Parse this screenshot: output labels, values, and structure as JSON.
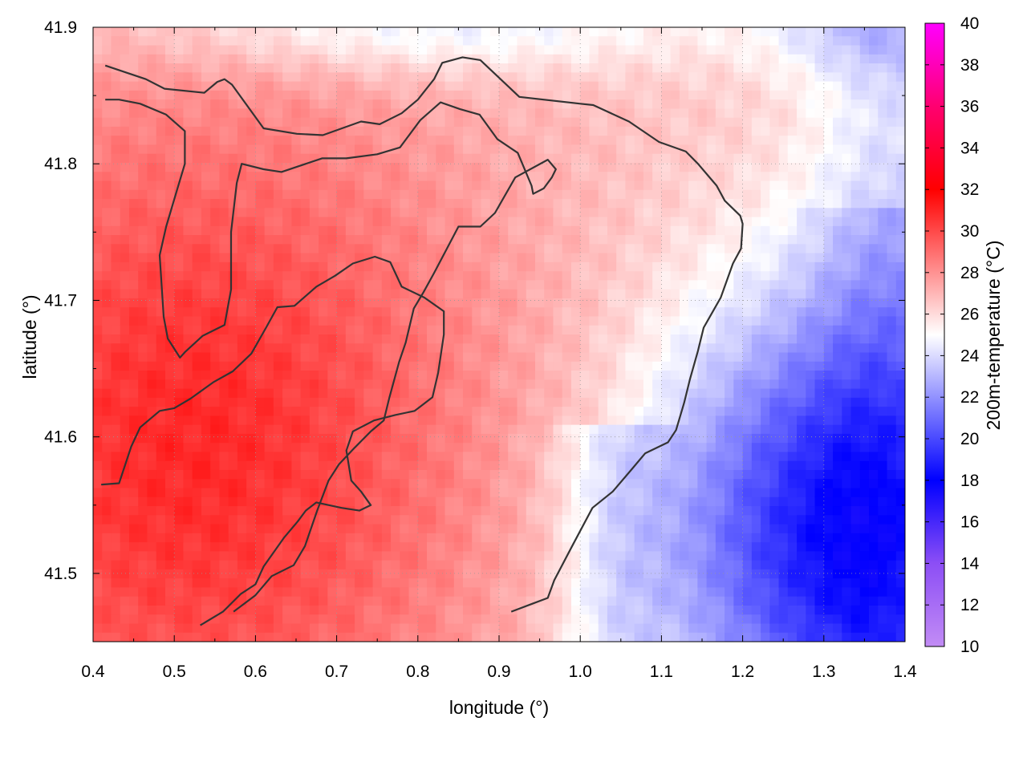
{
  "chart_data": {
    "type": "heatmap",
    "title": "",
    "xlabel": "longitude (°)",
    "ylabel": "latitude (°)",
    "colorbar_label": "200m-temperature (°C)",
    "xlim": [
      0.4,
      1.4
    ],
    "ylim": [
      41.45,
      41.9
    ],
    "x_ticks": [
      0.4,
      0.5,
      0.6,
      0.7,
      0.8,
      0.9,
      1.0,
      1.1,
      1.2,
      1.3,
      1.4
    ],
    "y_ticks": [
      41.5,
      41.6,
      41.7,
      41.8,
      41.9
    ],
    "x_tick_labels": [
      "0.4",
      "0.5",
      "0.6",
      "0.7",
      "0.8",
      "0.9",
      "1.0",
      "1.1",
      "1.2",
      "1.3",
      "1.4"
    ],
    "y_tick_labels": [
      "41.5",
      "41.6",
      "41.7",
      "41.8",
      "41.9"
    ],
    "colorbar_range": [
      10,
      40
    ],
    "colorbar_ticks": [
      10,
      12,
      14,
      16,
      18,
      20,
      22,
      24,
      26,
      28,
      30,
      32,
      34,
      36,
      38,
      40
    ],
    "colorbar_tick_labels": [
      "10",
      "12",
      "14",
      "16",
      "18",
      "20",
      "22",
      "24",
      "26",
      "28",
      "30",
      "32",
      "34",
      "36",
      "38",
      "40"
    ],
    "colorbar_stops": [
      {
        "value": 10,
        "color": "#c28cf5"
      },
      {
        "value": 14,
        "color": "#8c4ef5"
      },
      {
        "value": 18,
        "color": "#0000ff"
      },
      {
        "value": 25,
        "color": "#ffffff"
      },
      {
        "value": 32,
        "color": "#ff0000"
      },
      {
        "value": 36,
        "color": "#ff0070"
      },
      {
        "value": 40,
        "color": "#ff00ff"
      }
    ],
    "grid": true,
    "contour_color": "#333333",
    "contours": [
      {
        "level": "outer-left",
        "points": [
          [
            0.415,
            41.872
          ],
          [
            0.465,
            41.862
          ],
          [
            0.488,
            41.855
          ],
          [
            0.537,
            41.852
          ],
          [
            0.553,
            41.86
          ],
          [
            0.562,
            41.862
          ],
          [
            0.571,
            41.858
          ],
          [
            0.61,
            41.826
          ],
          [
            0.651,
            41.822
          ],
          [
            0.683,
            41.821
          ],
          [
            0.73,
            41.831
          ],
          [
            0.753,
            41.829
          ],
          [
            0.78,
            41.837
          ],
          [
            0.8,
            41.847
          ],
          [
            0.82,
            41.862
          ],
          [
            0.83,
            41.874
          ],
          [
            0.855,
            41.878
          ],
          [
            0.877,
            41.876
          ],
          [
            0.925,
            41.849
          ],
          [
            1.0,
            41.844
          ],
          [
            1.016,
            41.843
          ],
          [
            1.06,
            41.831
          ],
          [
            1.097,
            41.816
          ],
          [
            1.13,
            41.809
          ],
          [
            1.145,
            41.8
          ],
          [
            1.168,
            41.784
          ],
          [
            1.178,
            41.773
          ],
          [
            1.197,
            41.762
          ],
          [
            1.2,
            41.756
          ],
          [
            1.198,
            41.738
          ],
          [
            1.188,
            41.727
          ],
          [
            1.173,
            41.702
          ],
          [
            1.152,
            41.68
          ],
          [
            1.145,
            41.663
          ],
          [
            1.135,
            41.642
          ],
          [
            1.128,
            41.625
          ],
          [
            1.118,
            41.605
          ],
          [
            1.108,
            41.596
          ],
          [
            1.08,
            41.588
          ],
          [
            1.063,
            41.576
          ],
          [
            1.04,
            41.56
          ],
          [
            1.015,
            41.548
          ],
          [
            0.99,
            41.52
          ],
          [
            0.968,
            41.495
          ],
          [
            0.96,
            41.482
          ],
          [
            0.942,
            41.478
          ],
          [
            0.915,
            41.472
          ]
        ]
      },
      {
        "level": "inner-band",
        "points": [
          [
            0.415,
            41.847
          ],
          [
            0.432,
            41.847
          ],
          [
            0.458,
            41.844
          ],
          [
            0.49,
            41.836
          ],
          [
            0.513,
            41.824
          ],
          [
            0.513,
            41.806
          ],
          [
            0.513,
            41.8
          ],
          [
            0.503,
            41.78
          ],
          [
            0.49,
            41.754
          ],
          [
            0.482,
            41.733
          ],
          [
            0.485,
            41.706
          ],
          [
            0.487,
            41.688
          ],
          [
            0.492,
            41.672
          ],
          [
            0.507,
            41.658
          ],
          [
            0.513,
            41.662
          ],
          [
            0.535,
            41.674
          ],
          [
            0.562,
            41.682
          ],
          [
            0.57,
            41.708
          ],
          [
            0.57,
            41.75
          ],
          [
            0.577,
            41.786
          ],
          [
            0.583,
            41.8
          ],
          [
            0.61,
            41.796
          ],
          [
            0.632,
            41.794
          ],
          [
            0.682,
            41.804
          ],
          [
            0.712,
            41.804
          ],
          [
            0.75,
            41.807
          ],
          [
            0.778,
            41.812
          ],
          [
            0.803,
            41.832
          ],
          [
            0.828,
            41.845
          ],
          [
            0.852,
            41.84
          ],
          [
            0.876,
            41.836
          ],
          [
            0.898,
            41.818
          ],
          [
            0.923,
            41.808
          ],
          [
            0.94,
            41.784
          ],
          [
            0.942,
            41.778
          ],
          [
            0.955,
            41.782
          ],
          [
            0.965,
            41.79
          ],
          [
            0.97,
            41.796
          ],
          [
            0.96,
            41.803
          ],
          [
            0.92,
            41.79
          ],
          [
            0.895,
            41.764
          ],
          [
            0.877,
            41.754
          ],
          [
            0.85,
            41.754
          ],
          [
            0.835,
            41.737
          ],
          [
            0.82,
            41.72
          ],
          [
            0.807,
            41.706
          ],
          [
            0.795,
            41.694
          ],
          [
            0.785,
            41.669
          ],
          [
            0.777,
            41.655
          ],
          [
            0.765,
            41.629
          ],
          [
            0.758,
            41.612
          ],
          [
            0.742,
            41.604
          ],
          [
            0.722,
            41.592
          ],
          [
            0.703,
            41.58
          ],
          [
            0.69,
            41.568
          ],
          [
            0.676,
            41.546
          ],
          [
            0.661,
            41.52
          ],
          [
            0.647,
            41.506
          ],
          [
            0.62,
            41.498
          ],
          [
            0.6,
            41.484
          ],
          [
            0.573,
            41.472
          ]
        ]
      },
      {
        "level": "core",
        "points": [
          [
            0.41,
            41.565
          ],
          [
            0.432,
            41.566
          ],
          [
            0.447,
            41.593
          ],
          [
            0.458,
            41.607
          ],
          [
            0.482,
            41.619
          ],
          [
            0.5,
            41.621
          ],
          [
            0.52,
            41.628
          ],
          [
            0.548,
            41.64
          ],
          [
            0.572,
            41.648
          ],
          [
            0.595,
            41.661
          ],
          [
            0.613,
            41.68
          ],
          [
            0.627,
            41.695
          ],
          [
            0.648,
            41.696
          ],
          [
            0.675,
            41.71
          ],
          [
            0.698,
            41.718
          ],
          [
            0.72,
            41.727
          ],
          [
            0.747,
            41.732
          ],
          [
            0.766,
            41.728
          ],
          [
            0.78,
            41.71
          ],
          [
            0.808,
            41.702
          ],
          [
            0.832,
            41.692
          ],
          [
            0.832,
            41.675
          ],
          [
            0.825,
            41.647
          ],
          [
            0.818,
            41.629
          ],
          [
            0.796,
            41.619
          ],
          [
            0.772,
            41.616
          ],
          [
            0.746,
            41.612
          ],
          [
            0.72,
            41.604
          ],
          [
            0.712,
            41.59
          ],
          [
            0.718,
            41.568
          ],
          [
            0.73,
            41.56
          ],
          [
            0.742,
            41.55
          ],
          [
            0.728,
            41.546
          ],
          [
            0.706,
            41.548
          ],
          [
            0.675,
            41.552
          ],
          [
            0.662,
            41.546
          ],
          [
            0.652,
            41.538
          ],
          [
            0.635,
            41.526
          ],
          [
            0.61,
            41.505
          ],
          [
            0.6,
            41.492
          ],
          [
            0.582,
            41.485
          ],
          [
            0.56,
            41.472
          ],
          [
            0.532,
            41.462
          ]
        ]
      }
    ]
  }
}
